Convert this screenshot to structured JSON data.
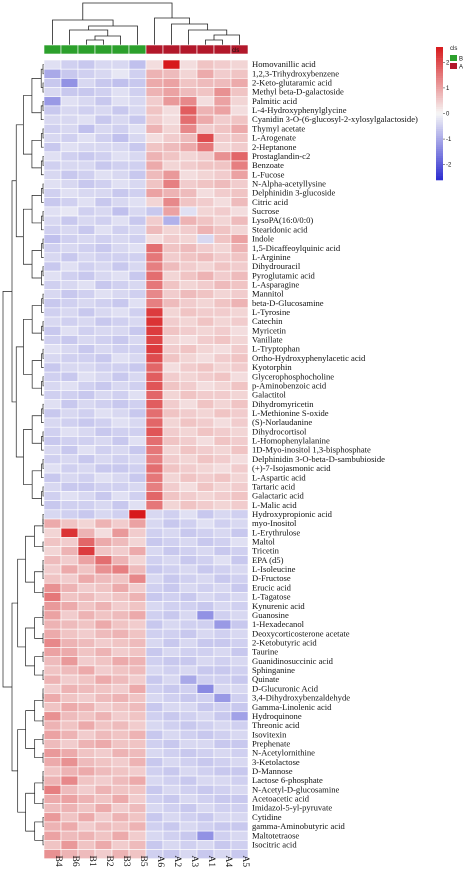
{
  "chart_data": {
    "type": "heatmap",
    "title": "",
    "columns": [
      "B4",
      "B6",
      "B1",
      "B2",
      "B3",
      "B5",
      "A6",
      "A2",
      "A3",
      "A1",
      "A4",
      "A5"
    ],
    "groups": [
      "B",
      "B",
      "B",
      "B",
      "B",
      "B",
      "A",
      "A",
      "A",
      "A",
      "A",
      "A"
    ],
    "annotation_label": "cls",
    "rows": [
      "Homovanillic acid",
      "1,2,3-Trihydroxybenzene",
      "2-Keto-glutaramic acid",
      "Methyl beta-D-galactoside",
      "Palmitic acid",
      "L-4-Hydroxyphenylglycine",
      "Cyanidin 3-O-(6-glucosyl-2-xylosylgalactoside)",
      "Thymyl acetate",
      "L-Arogenate",
      "2-Heptanone",
      "Prostaglandin-c2",
      "Benzoate",
      "L-Fucose",
      "N-Alpha-acetyllysine",
      "Delphinidin 3-glucoside",
      "Citric acid",
      "Sucrose",
      "LysoPA(16:0/0:0)",
      "Stearidonic acid",
      "Indole",
      "1,5-Dicaffeoylquinic acid",
      "L-Arginine",
      "Dihydrouracil",
      "Pyroglutamic acid",
      "L-Asparagine",
      "Mannitol",
      "beta-D-Glucosamine",
      "L-Tyrosine",
      "Catechin",
      "Myricetin",
      "Vanillate",
      "L-Tryptophan",
      "Ortho-Hydroxyphenylacetic acid",
      "Kyotorphin",
      "Glycerophosphocholine",
      "p-Aminobenzoic acid",
      "Galactitol",
      "Dihydromyricetin",
      "L-Methionine S-oxide",
      "(S)-Norlaudanine",
      "Dihydrocortisol",
      "L-Homophenylalanine",
      "1D-Myo-inositol 1,3-bisphosphate",
      "Delphinidin 3-O-beta-D-sambubioside",
      "(+)-7-Isojasmonic acid",
      "L-Aspartic acid",
      "Tartaric acid",
      "Galactaric acid",
      "L-Malic acid",
      "Hydroxypropionic acid",
      "myo-Inositol",
      "L-Erythrulose",
      "Maltol",
      "Tricetin",
      "EPA (d5)",
      "L-Isoleucine",
      "D-Fructose",
      "Erucic acid",
      "L-Tagatose",
      "Kynurenic acid",
      "Guanosine",
      "1-Hexadecanol",
      "Deoxycorticosterone acetate",
      "2-Ketobutyric acid",
      "Taurine",
      "Guanidinosuccinic acid",
      "Sphinganine",
      "Quinate",
      "D-Glucuronic Acid",
      "3,4-Dihydroxybenzaldehyde",
      "Gamma-Linolenic acid",
      "Hydroquinone",
      "Threonic acid",
      "Isovitexin",
      "Prephenate",
      "N-Acetylornithine",
      "3-Ketolactose",
      "D-Mannose",
      "Lactose 6-phosphate",
      "N-Acetyl-D-glucosamine",
      "Acetoacetic acid",
      "Imidazol-5-yl-pyruvate",
      "Cytidine",
      "gamma-Aminobutyric acid",
      "Maltotetraose",
      "Isocitric acid"
    ],
    "values": [
      [
        -0.3,
        -0.5,
        -0.6,
        -0.4,
        -0.4,
        -0.7,
        0.3,
        2.6,
        0.3,
        0.6,
        0.5,
        0.4
      ],
      [
        -1.0,
        -0.6,
        -0.5,
        -0.4,
        -0.2,
        -0.5,
        0.8,
        0.7,
        0.4,
        0.9,
        0.5,
        0.6
      ],
      [
        -0.6,
        -1.3,
        -0.4,
        -0.6,
        -0.7,
        -0.6,
        0.9,
        1.0,
        0.6,
        0.7,
        0.7,
        0.9
      ],
      [
        -0.4,
        -0.6,
        -0.6,
        -0.5,
        -0.3,
        -0.5,
        0.8,
        1.0,
        0.7,
        0.6,
        1.2,
        0.6
      ],
      [
        -1.2,
        -0.3,
        -0.4,
        -0.6,
        -0.3,
        -0.4,
        0.5,
        1.1,
        1.3,
        0.3,
        1.0,
        0.4
      ],
      [
        -0.6,
        -0.4,
        -0.5,
        -0.4,
        -0.6,
        -0.4,
        0.6,
        0.3,
        1.8,
        0.8,
        1.0,
        0.3
      ],
      [
        -0.4,
        -0.4,
        -0.3,
        -0.6,
        -0.4,
        -0.6,
        0.5,
        0.3,
        1.6,
        0.9,
        0.5,
        0.6
      ],
      [
        -0.5,
        -0.4,
        -0.7,
        -0.4,
        -0.5,
        -0.3,
        0.8,
        0.4,
        1.3,
        0.5,
        0.6,
        0.9
      ],
      [
        -0.4,
        -0.5,
        -0.3,
        -0.5,
        -0.7,
        -0.4,
        0.3,
        0.5,
        0.7,
        2.0,
        0.5,
        0.6
      ],
      [
        -0.6,
        -0.3,
        -0.4,
        -0.4,
        -0.4,
        -0.6,
        0.6,
        0.7,
        0.9,
        1.5,
        0.4,
        0.5
      ],
      [
        -0.3,
        -0.5,
        -0.6,
        -0.5,
        -0.3,
        -0.4,
        0.8,
        0.6,
        0.4,
        0.5,
        1.2,
        1.7
      ],
      [
        -0.5,
        -0.4,
        -0.4,
        -0.6,
        -0.5,
        -0.5,
        0.9,
        0.4,
        0.5,
        0.6,
        0.6,
        1.4
      ],
      [
        -0.4,
        -0.6,
        -0.5,
        -0.3,
        -0.4,
        -0.6,
        0.7,
        1.1,
        0.3,
        0.4,
        0.5,
        1.0
      ],
      [
        -0.3,
        -0.4,
        -0.6,
        -0.5,
        -0.3,
        -0.4,
        0.6,
        1.4,
        0.5,
        0.6,
        0.7,
        0.5
      ],
      [
        -0.5,
        -0.3,
        -0.4,
        -0.4,
        -0.6,
        -0.5,
        1.0,
        0.8,
        0.7,
        0.3,
        0.5,
        0.6
      ],
      [
        -0.6,
        -0.5,
        -0.3,
        -0.6,
        -0.4,
        -0.3,
        0.4,
        1.3,
        0.6,
        0.5,
        0.3,
        0.7
      ],
      [
        -0.3,
        -0.2,
        -0.5,
        -0.4,
        -0.7,
        -0.4,
        -0.6,
        1.0,
        -0.3,
        0.4,
        0.5,
        0.3
      ],
      [
        -0.4,
        -0.6,
        -0.4,
        -0.5,
        -0.3,
        -0.6,
        0.5,
        -0.9,
        0.8,
        0.6,
        0.4,
        0.7
      ],
      [
        -0.5,
        -0.4,
        -0.6,
        -0.3,
        -0.5,
        -0.4,
        0.7,
        0.4,
        0.5,
        0.8,
        0.6,
        0.4
      ],
      [
        -0.7,
        -0.5,
        -0.4,
        -0.5,
        -0.4,
        -0.5,
        0.3,
        0.5,
        0.4,
        -0.4,
        0.6,
        1.0
      ],
      [
        -0.5,
        -0.4,
        -0.5,
        -0.6,
        -0.4,
        -0.3,
        1.6,
        0.6,
        0.7,
        0.5,
        0.4,
        0.8
      ],
      [
        -0.4,
        -0.6,
        -0.4,
        -0.5,
        -0.5,
        -0.5,
        1.5,
        0.5,
        0.6,
        0.7,
        0.5,
        0.6
      ],
      [
        -0.6,
        -0.3,
        -0.5,
        -0.4,
        -0.6,
        -0.4,
        1.4,
        0.7,
        0.5,
        0.4,
        0.6,
        0.5
      ],
      [
        -0.3,
        -0.5,
        -0.6,
        -0.4,
        -0.3,
        -0.6,
        1.6,
        0.4,
        0.6,
        0.8,
        0.5,
        0.7
      ],
      [
        -0.5,
        -0.4,
        -0.3,
        -0.6,
        -0.5,
        -0.4,
        1.5,
        0.6,
        0.4,
        0.5,
        0.7,
        0.6
      ],
      [
        -0.4,
        -0.6,
        -0.5,
        -0.3,
        -0.4,
        -0.5,
        1.3,
        0.5,
        0.7,
        0.6,
        0.4,
        0.5
      ],
      [
        -0.6,
        -0.5,
        -0.4,
        -0.5,
        -0.6,
        -0.3,
        1.4,
        0.7,
        0.5,
        0.4,
        0.6,
        0.8
      ],
      [
        -0.5,
        -0.4,
        -0.6,
        -0.4,
        -0.3,
        -0.5,
        2.2,
        0.4,
        0.6,
        0.5,
        0.5,
        0.4
      ],
      [
        -0.4,
        -0.5,
        -0.4,
        -0.6,
        -0.5,
        -0.4,
        2.3,
        0.5,
        0.4,
        0.6,
        0.4,
        0.5
      ],
      [
        -0.6,
        -0.3,
        -0.5,
        -0.4,
        -0.4,
        -0.6,
        2.2,
        0.6,
        0.5,
        0.4,
        0.5,
        0.3
      ],
      [
        -0.5,
        -0.6,
        -0.4,
        -0.5,
        -0.6,
        -0.4,
        2.1,
        0.4,
        0.3,
        0.5,
        0.6,
        0.4
      ],
      [
        -0.3,
        -0.4,
        -0.6,
        -0.4,
        -0.5,
        -0.5,
        2.2,
        0.5,
        0.6,
        0.4,
        0.3,
        0.5
      ],
      [
        -0.4,
        -0.5,
        -0.5,
        -0.6,
        -0.3,
        -0.4,
        2.0,
        0.6,
        0.4,
        0.3,
        0.5,
        0.6
      ],
      [
        -0.6,
        -0.4,
        -0.4,
        -0.5,
        -0.5,
        -0.6,
        1.7,
        0.3,
        0.5,
        0.6,
        0.4,
        0.5
      ],
      [
        -0.5,
        -0.6,
        -0.3,
        -0.4,
        -0.6,
        -0.4,
        1.8,
        0.5,
        0.4,
        0.5,
        0.6,
        0.3
      ],
      [
        -0.4,
        -0.3,
        -0.5,
        -0.6,
        -0.4,
        -0.5,
        1.9,
        0.6,
        0.5,
        0.3,
        0.4,
        0.6
      ],
      [
        -0.5,
        -0.5,
        -0.6,
        -0.4,
        -0.5,
        -0.3,
        1.7,
        0.4,
        0.6,
        0.5,
        0.5,
        0.4
      ],
      [
        -0.3,
        -0.6,
        -0.4,
        -0.5,
        -0.6,
        -0.5,
        1.8,
        0.5,
        0.3,
        0.6,
        0.4,
        0.6
      ],
      [
        -0.6,
        -0.4,
        -0.5,
        -0.3,
        -0.4,
        -0.6,
        1.6,
        0.6,
        0.5,
        0.4,
        0.6,
        0.5
      ],
      [
        -0.4,
        -0.5,
        -0.6,
        -0.5,
        -0.3,
        -0.4,
        1.7,
        0.4,
        0.6,
        0.5,
        0.3,
        0.5
      ],
      [
        -0.5,
        -0.3,
        -0.4,
        -0.6,
        -0.5,
        -0.5,
        1.9,
        0.5,
        0.4,
        0.6,
        0.5,
        0.4
      ],
      [
        -0.6,
        -0.5,
        -0.5,
        -0.4,
        -0.6,
        -0.3,
        1.6,
        0.6,
        0.5,
        0.3,
        0.6,
        0.5
      ],
      [
        -0.4,
        -0.6,
        -0.3,
        -0.5,
        -0.4,
        -0.6,
        1.5,
        0.4,
        0.6,
        0.5,
        0.4,
        0.6
      ],
      [
        -0.5,
        -0.4,
        -0.6,
        -0.4,
        -0.5,
        -0.4,
        1.4,
        0.5,
        0.4,
        0.6,
        0.5,
        0.3
      ],
      [
        -0.3,
        -0.5,
        -0.4,
        -0.6,
        -0.6,
        -0.5,
        1.6,
        0.6,
        0.5,
        0.4,
        0.3,
        0.5
      ],
      [
        -0.6,
        -0.4,
        -0.5,
        -0.3,
        -0.4,
        -0.6,
        1.5,
        0.4,
        0.6,
        0.5,
        0.6,
        0.4
      ],
      [
        -0.4,
        -0.6,
        -0.6,
        -0.5,
        -0.5,
        -0.4,
        1.4,
        0.5,
        0.3,
        0.6,
        0.4,
        0.5
      ],
      [
        -0.5,
        -0.3,
        -0.4,
        -0.6,
        -0.3,
        -0.5,
        1.7,
        0.6,
        0.5,
        0.4,
        0.5,
        0.6
      ],
      [
        -0.6,
        -0.5,
        -0.5,
        -0.4,
        -0.6,
        -0.3,
        1.5,
        0.4,
        0.6,
        0.5,
        0.4,
        0.5
      ],
      [
        -0.4,
        -0.5,
        -0.6,
        -0.4,
        -0.5,
        2.6,
        -0.4,
        -0.5,
        -0.3,
        -0.6,
        -0.4,
        -0.5
      ],
      [
        0.9,
        0.6,
        0.4,
        0.8,
        0.5,
        1.0,
        -0.4,
        -0.6,
        -0.5,
        -0.3,
        -0.5,
        -0.4
      ],
      [
        0.4,
        2.3,
        0.8,
        0.3,
        1.1,
        0.5,
        -0.5,
        -0.4,
        -0.6,
        -0.5,
        -0.4,
        -0.6
      ],
      [
        0.6,
        0.5,
        1.7,
        0.9,
        0.7,
        0.4,
        -0.6,
        -0.5,
        -0.4,
        -0.6,
        -0.5,
        -0.3
      ],
      [
        0.4,
        0.8,
        2.2,
        0.6,
        0.5,
        0.9,
        -0.4,
        -0.6,
        -0.5,
        -0.4,
        -0.6,
        -0.5
      ],
      [
        0.7,
        0.5,
        1.0,
        1.6,
        0.8,
        0.4,
        -0.5,
        -0.4,
        -0.6,
        -0.5,
        -0.3,
        -0.6
      ],
      [
        0.5,
        0.9,
        0.6,
        1.2,
        1.4,
        0.7,
        -0.6,
        -0.5,
        -0.4,
        -0.6,
        -0.5,
        -0.4
      ],
      [
        0.6,
        0.5,
        0.9,
        0.7,
        0.6,
        1.3,
        -0.4,
        -0.6,
        -0.5,
        -0.4,
        -0.6,
        -0.5
      ],
      [
        1.2,
        0.8,
        0.5,
        0.6,
        0.9,
        0.5,
        -0.5,
        -0.6,
        -0.4,
        -0.5,
        -0.4,
        -0.6
      ],
      [
        1.5,
        0.6,
        0.7,
        0.5,
        0.6,
        0.8,
        -0.6,
        -0.5,
        -0.6,
        -0.4,
        -0.5,
        -0.4
      ],
      [
        1.1,
        0.9,
        0.6,
        0.8,
        0.5,
        0.6,
        -0.4,
        -0.5,
        -0.5,
        -0.6,
        -0.4,
        -0.5
      ],
      [
        1.0,
        0.5,
        0.8,
        0.6,
        0.7,
        0.9,
        -0.5,
        -0.6,
        -0.4,
        -1.3,
        -0.5,
        -0.4
      ],
      [
        0.8,
        0.7,
        0.6,
        0.9,
        0.6,
        0.5,
        -0.6,
        -0.4,
        -0.5,
        -0.5,
        -1.2,
        -0.6
      ],
      [
        0.9,
        0.6,
        0.5,
        0.7,
        0.8,
        0.6,
        -0.5,
        -0.5,
        -0.6,
        -0.4,
        -0.5,
        -0.4
      ],
      [
        1.3,
        0.8,
        0.7,
        0.5,
        0.6,
        0.7,
        -0.4,
        -0.6,
        -0.4,
        -0.6,
        -0.6,
        -0.5
      ],
      [
        1.0,
        0.9,
        0.6,
        0.8,
        0.5,
        0.6,
        -0.6,
        -0.4,
        -0.5,
        -0.5,
        -0.4,
        -0.6
      ],
      [
        0.7,
        1.1,
        0.5,
        0.6,
        0.9,
        0.8,
        -0.5,
        -0.6,
        -0.6,
        -0.4,
        -0.5,
        -0.4
      ],
      [
        0.6,
        0.7,
        0.9,
        0.5,
        0.6,
        0.7,
        -0.4,
        -0.5,
        -0.4,
        -0.6,
        -0.6,
        -0.5
      ],
      [
        0.8,
        0.5,
        0.6,
        0.9,
        0.7,
        0.5,
        -0.6,
        -0.4,
        -1.0,
        -0.5,
        -0.5,
        -0.6
      ],
      [
        0.5,
        0.8,
        0.7,
        0.6,
        0.5,
        0.9,
        -0.5,
        -0.6,
        -0.5,
        -1.4,
        -0.4,
        -0.4
      ],
      [
        0.9,
        0.6,
        0.5,
        0.7,
        0.8,
        0.6,
        -0.4,
        -0.5,
        -0.6,
        -0.5,
        -1.2,
        -0.5
      ],
      [
        0.6,
        0.9,
        0.8,
        0.5,
        0.6,
        0.7,
        -0.6,
        -0.4,
        -0.4,
        -0.6,
        -0.5,
        -0.6
      ],
      [
        1.2,
        0.7,
        0.6,
        0.8,
        0.5,
        0.6,
        -0.5,
        -0.6,
        -0.5,
        -0.4,
        -0.6,
        -1.1
      ],
      [
        0.8,
        0.6,
        0.9,
        0.6,
        0.7,
        0.5,
        -0.4,
        -0.5,
        -0.6,
        -0.5,
        -0.4,
        -0.5
      ],
      [
        1.0,
        0.8,
        0.5,
        0.7,
        0.6,
        0.8,
        -0.6,
        -0.4,
        -0.5,
        -0.6,
        -0.5,
        -0.4
      ],
      [
        0.7,
        0.5,
        0.8,
        0.9,
        0.6,
        0.6,
        -0.5,
        -0.6,
        -0.4,
        -0.4,
        -0.6,
        -0.6
      ],
      [
        1.1,
        0.9,
        0.6,
        0.5,
        0.8,
        0.7,
        -0.4,
        -0.5,
        -0.6,
        -0.5,
        -0.4,
        -0.5
      ],
      [
        0.9,
        1.2,
        0.7,
        0.6,
        0.5,
        0.8,
        -0.6,
        -0.4,
        -0.5,
        -0.6,
        -0.5,
        -0.4
      ],
      [
        0.6,
        0.8,
        0.9,
        0.7,
        0.6,
        0.5,
        -0.5,
        -0.6,
        -0.4,
        -0.5,
        -0.6,
        -0.6
      ],
      [
        0.8,
        1.3,
        0.6,
        0.5,
        0.7,
        0.9,
        -0.4,
        -0.5,
        -0.6,
        -0.4,
        -0.4,
        -0.5
      ],
      [
        1.4,
        0.7,
        0.5,
        0.8,
        0.6,
        0.6,
        -0.6,
        -0.4,
        -0.5,
        -0.6,
        -0.5,
        -0.4
      ],
      [
        0.9,
        1.0,
        0.8,
        0.6,
        0.9,
        0.5,
        -0.5,
        -0.6,
        -0.4,
        -0.5,
        -0.6,
        -0.6
      ],
      [
        0.7,
        0.8,
        0.6,
        0.9,
        0.5,
        0.7,
        -0.4,
        -0.5,
        -0.6,
        -0.4,
        -0.5,
        -0.5
      ],
      [
        1.1,
        0.6,
        0.9,
        0.5,
        0.8,
        0.6,
        -0.6,
        -0.4,
        -0.5,
        -0.6,
        -0.4,
        -0.4
      ],
      [
        0.8,
        0.9,
        0.5,
        0.7,
        0.6,
        0.8,
        -0.5,
        -0.6,
        -0.4,
        -0.5,
        -0.6,
        -0.6
      ],
      [
        1.0,
        0.7,
        0.8,
        0.6,
        0.9,
        0.5,
        -0.4,
        -0.5,
        -0.6,
        -1.3,
        -0.5,
        -0.4
      ],
      [
        0.6,
        1.1,
        0.6,
        0.9,
        0.5,
        0.7,
        -0.6,
        -0.4,
        -0.5,
        -0.4,
        -0.6,
        -0.5
      ],
      [
        1.2,
        0.8,
        0.7,
        0.5,
        0.8,
        0.6,
        -0.5,
        -0.6,
        -0.4,
        -0.6,
        -0.4,
        -0.6
      ]
    ],
    "scale": {
      "min": -2.6,
      "max": 2.6,
      "ticks": [
        2,
        1,
        0,
        -1,
        -2
      ]
    },
    "colors": {
      "high": "#d7191c",
      "mid": "#f7f7f7",
      "low": "#2c2cd0",
      "group_B": "#2ca02c",
      "group_A": "#b2182b"
    },
    "legend": {
      "title": "cls",
      "entries": [
        "B",
        "A"
      ],
      "position": "top-right"
    }
  }
}
